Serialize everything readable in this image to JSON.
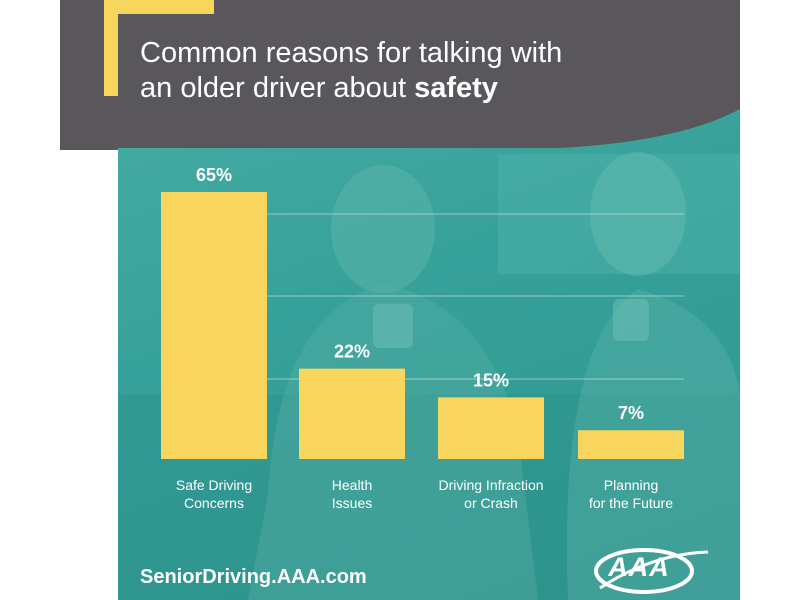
{
  "header": {
    "title_line1": "Common reasons for talking with",
    "title_line2_prefix": "an older driver about ",
    "title_line2_bold": "safety"
  },
  "footer": {
    "url": "SeniorDriving.AAA.com",
    "logo_text": "AAA"
  },
  "colors": {
    "bar": "#f8d65e",
    "teal": "#36a19a",
    "header_gray": "#59575c",
    "text": "#ffffff"
  },
  "chart_data": {
    "type": "bar",
    "title": "Common reasons for talking with an older driver about safety",
    "categories": [
      "Safe Driving Concerns",
      "Health Issues",
      "Driving Infraction or Crash",
      "Planning for the Future"
    ],
    "category_lines": [
      [
        "Safe Driving",
        "Concerns"
      ],
      [
        "Health",
        "Issues"
      ],
      [
        "Driving Infraction",
        "or Crash"
      ],
      [
        "Planning",
        "for the Future"
      ]
    ],
    "values": [
      65,
      22,
      15,
      7
    ],
    "value_labels": [
      "65%",
      "22%",
      "15%",
      "7%"
    ],
    "unit": "%",
    "ylim": [
      0,
      65
    ],
    "grid": true,
    "xlabel": "",
    "ylabel": ""
  }
}
